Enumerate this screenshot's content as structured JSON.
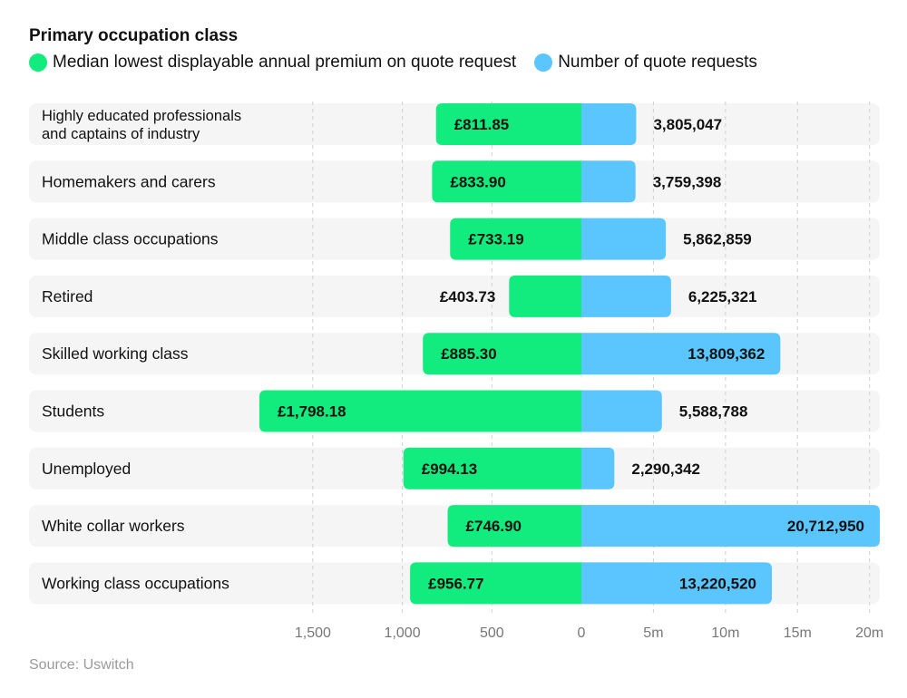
{
  "legend": {
    "title": "Primary occupation class",
    "left_label": "Median lowest displayable annual premium on quote request",
    "right_label": "Number of quote requests"
  },
  "source": "Source: Uswitch",
  "colors": {
    "premium": "#12ec7e",
    "requests": "#5bc6fd",
    "row_bg": "#f5f5f5",
    "grid": "#cfcfcf"
  },
  "chart_data": {
    "type": "bar",
    "orientation": "horizontal-diverging",
    "categories": [
      [
        "Highly educated professionals",
        "and captains of industry"
      ],
      [
        "Homemakers and carers"
      ],
      [
        "Middle class occupations"
      ],
      [
        "Retired"
      ],
      [
        "Skilled working class"
      ],
      [
        "Students"
      ],
      [
        "Unemployed"
      ],
      [
        "White collar workers"
      ],
      [
        "Working class occupations"
      ]
    ],
    "series": [
      {
        "name": "Median lowest displayable annual premium on quote request",
        "values": [
          811.85,
          833.9,
          733.19,
          403.73,
          885.3,
          1798.18,
          994.13,
          746.9,
          956.77
        ],
        "labels": [
          "£811.85",
          "£833.90",
          "£733.19",
          "£403.73",
          "£885.30",
          "£1,798.18",
          "£994.13",
          "£746.90",
          "£956.77"
        ],
        "axis_range": [
          0,
          2000
        ],
        "ticks": [
          1500,
          1000,
          500,
          0
        ],
        "tick_labels": [
          "1,500",
          "1,000",
          "500",
          "0"
        ]
      },
      {
        "name": "Number of quote requests",
        "values": [
          3805047,
          3759398,
          5862859,
          6225321,
          13809362,
          5588788,
          2290342,
          20712950,
          13220520
        ],
        "labels": [
          "3,805,047",
          "3,759,398",
          "5,862,859",
          "6,225,321",
          "13,809,362",
          "5,588,788",
          "2,290,342",
          "20,712,950",
          "13,220,520"
        ],
        "axis_range": [
          0,
          20000000
        ],
        "ticks": [
          5000000,
          10000000,
          15000000,
          20000000
        ],
        "tick_labels": [
          "5m",
          "10m",
          "15m",
          "20m"
        ]
      }
    ],
    "grid": true,
    "legend_position": "top-left"
  }
}
